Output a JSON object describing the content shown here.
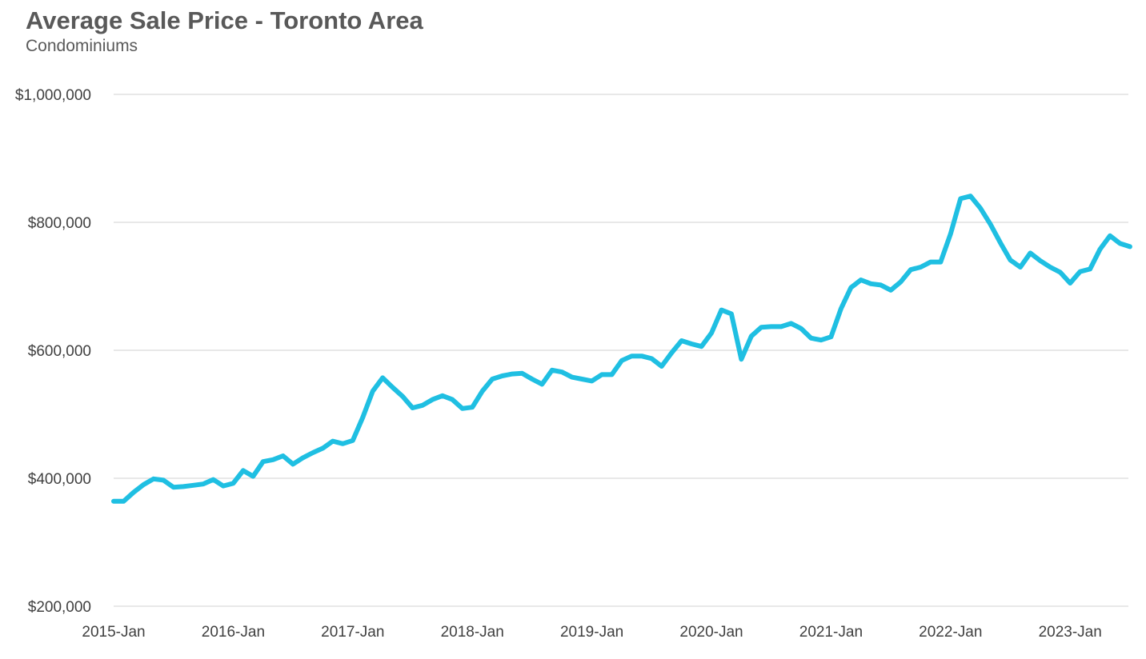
{
  "chart_data": {
    "type": "line",
    "title": "Average Sale Price - Toronto Area",
    "subtitle": "Condominiums",
    "xlabel": "",
    "ylabel": "",
    "ylim": [
      200000,
      1000000
    ],
    "y_ticks": [
      200000,
      400000,
      600000,
      800000,
      1000000
    ],
    "y_tick_labels": [
      "$200,000",
      "$400,000",
      "$600,000",
      "$800,000",
      "$1,000,000"
    ],
    "x_start": "2015-Jan",
    "x_tick_labels": [
      "2015-Jan",
      "2016-Jan",
      "2017-Jan",
      "2018-Jan",
      "2019-Jan",
      "2020-Jan",
      "2021-Jan",
      "2022-Jan",
      "2023-Jan"
    ],
    "x_tick_month_index": [
      0,
      12,
      24,
      36,
      48,
      60,
      72,
      84,
      96
    ],
    "grid": true,
    "legend": "none",
    "series": [
      {
        "name": "Condominiums",
        "color": "#1fbfe2",
        "values": [
          364000,
          364000,
          378000,
          390000,
          399000,
          397000,
          386000,
          387000,
          389000,
          391000,
          398000,
          388000,
          392000,
          412000,
          403000,
          426000,
          429000,
          435000,
          422000,
          432000,
          440000,
          447000,
          458000,
          454000,
          459000,
          495000,
          536000,
          557000,
          542000,
          528000,
          510000,
          514000,
          523000,
          529000,
          523000,
          509000,
          511000,
          536000,
          555000,
          560000,
          563000,
          564000,
          555000,
          547000,
          569000,
          566000,
          558000,
          555000,
          552000,
          562000,
          562000,
          584000,
          591000,
          591000,
          587000,
          575000,
          596000,
          615000,
          610000,
          606000,
          627000,
          663000,
          657000,
          586000,
          622000,
          636000,
          637000,
          637000,
          642000,
          634000,
          619000,
          616000,
          621000,
          665000,
          698000,
          710000,
          704000,
          702000,
          694000,
          707000,
          726000,
          730000,
          738000,
          738000,
          782000,
          837000,
          841000,
          822000,
          797000,
          768000,
          741000,
          730000,
          752000,
          740000,
          730000,
          722000,
          705000,
          723000,
          727000,
          758000,
          779000,
          767000,
          762000
        ]
      }
    ]
  }
}
